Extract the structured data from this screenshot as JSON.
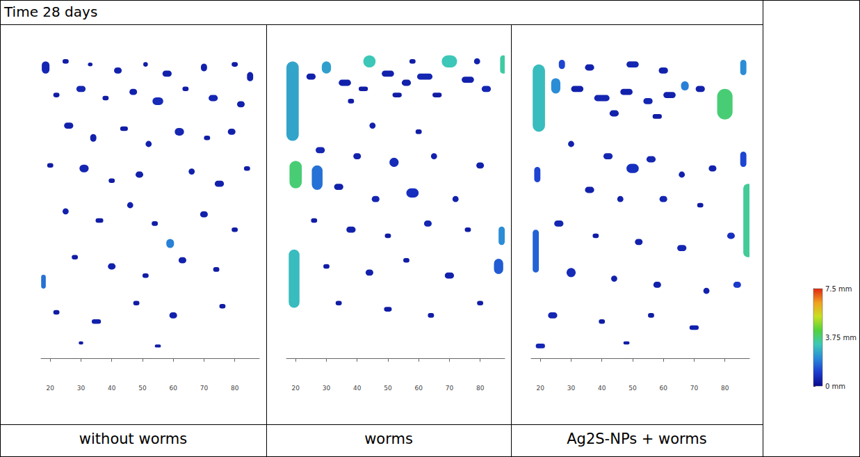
{
  "title": "Time 28 days",
  "colorbar": {
    "range": [
      0,
      7.5
    ],
    "ticks": [
      {
        "value": 0,
        "label": "0 mm"
      },
      {
        "value": 3.75,
        "label": "3.75 mm"
      },
      {
        "value": 7.5,
        "label": "7.5 mm"
      }
    ],
    "colors": [
      "#0a0a8c",
      "#1c3cd0",
      "#2a8ad8",
      "#3cc8b8",
      "#52d23c",
      "#c8e020",
      "#f0a020",
      "#e02810"
    ]
  },
  "chart_data": [
    {
      "type": "pore_map",
      "title": "without worms",
      "xlim": [
        17,
        88
      ],
      "xticks": [
        20,
        30,
        40,
        50,
        60,
        70,
        80
      ],
      "ylim": [
        0,
        100
      ],
      "tick_labels": "x",
      "pores": [
        {
          "x": 18.5,
          "y": 95,
          "w": 2.5,
          "h": 4,
          "thickness": 0.6
        },
        {
          "x": 25,
          "y": 97,
          "w": 2,
          "h": 1.5,
          "thickness": 0.4
        },
        {
          "x": 33,
          "y": 96,
          "w": 1.5,
          "h": 1.2,
          "thickness": 0.4
        },
        {
          "x": 42,
          "y": 94,
          "w": 2.5,
          "h": 2,
          "thickness": 0.5
        },
        {
          "x": 51,
          "y": 96,
          "w": 1.5,
          "h": 1.5,
          "thickness": 0.4
        },
        {
          "x": 58,
          "y": 93,
          "w": 3,
          "h": 2,
          "thickness": 0.5
        },
        {
          "x": 70,
          "y": 95,
          "w": 2,
          "h": 2.5,
          "thickness": 0.5
        },
        {
          "x": 80,
          "y": 96,
          "w": 2,
          "h": 1.5,
          "thickness": 0.4
        },
        {
          "x": 85,
          "y": 92,
          "w": 2,
          "h": 3,
          "thickness": 0.5
        },
        {
          "x": 22,
          "y": 86,
          "w": 2,
          "h": 1.5,
          "thickness": 0.4
        },
        {
          "x": 30,
          "y": 88,
          "w": 3,
          "h": 2,
          "thickness": 0.6
        },
        {
          "x": 38,
          "y": 85,
          "w": 2,
          "h": 1.5,
          "thickness": 0.4
        },
        {
          "x": 47,
          "y": 87,
          "w": 2.5,
          "h": 2,
          "thickness": 0.5
        },
        {
          "x": 55,
          "y": 84,
          "w": 3.5,
          "h": 2.5,
          "thickness": 0.7
        },
        {
          "x": 64,
          "y": 88,
          "w": 2,
          "h": 1.5,
          "thickness": 0.4
        },
        {
          "x": 73,
          "y": 85,
          "w": 3,
          "h": 2,
          "thickness": 0.6
        },
        {
          "x": 82,
          "y": 83,
          "w": 2.5,
          "h": 2,
          "thickness": 0.5
        },
        {
          "x": 26,
          "y": 76,
          "w": 3,
          "h": 2,
          "thickness": 0.5
        },
        {
          "x": 34,
          "y": 72,
          "w": 2,
          "h": 2.5,
          "thickness": 0.5
        },
        {
          "x": 44,
          "y": 75,
          "w": 2.5,
          "h": 1.5,
          "thickness": 0.4
        },
        {
          "x": 52,
          "y": 70,
          "w": 2,
          "h": 2,
          "thickness": 0.5
        },
        {
          "x": 62,
          "y": 74,
          "w": 3,
          "h": 2.5,
          "thickness": 0.6
        },
        {
          "x": 71,
          "y": 72,
          "w": 2,
          "h": 1.5,
          "thickness": 0.4
        },
        {
          "x": 79,
          "y": 74,
          "w": 2.5,
          "h": 2,
          "thickness": 0.5
        },
        {
          "x": 20,
          "y": 63,
          "w": 2,
          "h": 1.5,
          "thickness": 0.4
        },
        {
          "x": 31,
          "y": 62,
          "w": 3,
          "h": 2.5,
          "thickness": 0.6
        },
        {
          "x": 40,
          "y": 58,
          "w": 2,
          "h": 1.5,
          "thickness": 0.4
        },
        {
          "x": 49,
          "y": 60,
          "w": 2.5,
          "h": 2,
          "thickness": 0.5
        },
        {
          "x": 66,
          "y": 61,
          "w": 2,
          "h": 2,
          "thickness": 0.5
        },
        {
          "x": 75,
          "y": 57,
          "w": 3,
          "h": 2,
          "thickness": 0.5
        },
        {
          "x": 84,
          "y": 62,
          "w": 2,
          "h": 1.5,
          "thickness": 0.4
        },
        {
          "x": 25,
          "y": 48,
          "w": 2,
          "h": 2,
          "thickness": 0.5
        },
        {
          "x": 36,
          "y": 45,
          "w": 2.5,
          "h": 1.5,
          "thickness": 0.4
        },
        {
          "x": 46,
          "y": 50,
          "w": 2,
          "h": 2,
          "thickness": 0.5
        },
        {
          "x": 59,
          "y": 37.5,
          "w": 2.5,
          "h": 3,
          "thickness": 2.0
        },
        {
          "x": 54,
          "y": 44,
          "w": 2,
          "h": 1.5,
          "thickness": 0.4
        },
        {
          "x": 70,
          "y": 47,
          "w": 2.5,
          "h": 2,
          "thickness": 0.5
        },
        {
          "x": 80,
          "y": 42,
          "w": 2,
          "h": 1.5,
          "thickness": 0.4
        },
        {
          "x": 17.8,
          "y": 25,
          "w": 1.5,
          "h": 4.5,
          "thickness": 1.8
        },
        {
          "x": 28,
          "y": 33,
          "w": 2,
          "h": 1.5,
          "thickness": 0.4
        },
        {
          "x": 40,
          "y": 30,
          "w": 2.5,
          "h": 2,
          "thickness": 0.5
        },
        {
          "x": 51,
          "y": 27,
          "w": 2,
          "h": 1.5,
          "thickness": 0.4
        },
        {
          "x": 63,
          "y": 32,
          "w": 2.5,
          "h": 2,
          "thickness": 0.5
        },
        {
          "x": 74,
          "y": 29,
          "w": 2,
          "h": 1.5,
          "thickness": 0.4
        },
        {
          "x": 22,
          "y": 15,
          "w": 2,
          "h": 1.5,
          "thickness": 0.4
        },
        {
          "x": 35,
          "y": 12,
          "w": 3,
          "h": 1.5,
          "thickness": 0.5
        },
        {
          "x": 48,
          "y": 18,
          "w": 2,
          "h": 1.5,
          "thickness": 0.4
        },
        {
          "x": 60,
          "y": 14,
          "w": 2.5,
          "h": 2,
          "thickness": 0.5
        },
        {
          "x": 76,
          "y": 17,
          "w": 2,
          "h": 1.5,
          "thickness": 0.4
        },
        {
          "x": 30,
          "y": 5,
          "w": 1.5,
          "h": 1,
          "thickness": 0.4
        },
        {
          "x": 55,
          "y": 4,
          "w": 2,
          "h": 1,
          "thickness": 0.4
        }
      ]
    },
    {
      "type": "pore_map",
      "title": "worms",
      "xlim": [
        17,
        88
      ],
      "xticks": [
        20,
        30,
        40,
        50,
        60,
        70,
        80
      ],
      "ylim": [
        0,
        100
      ],
      "tick_labels": "x",
      "pores": [
        {
          "x": 19,
          "y": 84,
          "w": 4,
          "h": 26,
          "thickness": 2.6
        },
        {
          "x": 20,
          "y": 60,
          "w": 4,
          "h": 9,
          "thickness": 3.8
        },
        {
          "x": 27,
          "y": 59,
          "w": 3.5,
          "h": 8,
          "thickness": 1.8
        },
        {
          "x": 19.5,
          "y": 26,
          "w": 3.5,
          "h": 19,
          "thickness": 3.0
        },
        {
          "x": 30,
          "y": 95,
          "w": 3,
          "h": 4,
          "thickness": 2.5
        },
        {
          "x": 44,
          "y": 97,
          "w": 4,
          "h": 4,
          "thickness": 3.2
        },
        {
          "x": 70,
          "y": 97,
          "w": 5,
          "h": 4,
          "thickness": 3.2
        },
        {
          "x": 87.5,
          "y": 96,
          "w": 2,
          "h": 6,
          "thickness": 3.4
        },
        {
          "x": 87,
          "y": 40,
          "w": 2,
          "h": 6,
          "thickness": 2.2
        },
        {
          "x": 86,
          "y": 30,
          "w": 3,
          "h": 5,
          "thickness": 1.5
        },
        {
          "x": 25,
          "y": 92,
          "w": 3,
          "h": 2,
          "thickness": 0.5
        },
        {
          "x": 36,
          "y": 90,
          "w": 4,
          "h": 2,
          "thickness": 0.5
        },
        {
          "x": 42,
          "y": 88,
          "w": 3,
          "h": 1.5,
          "thickness": 0.4
        },
        {
          "x": 50,
          "y": 93,
          "w": 4,
          "h": 2,
          "thickness": 0.5
        },
        {
          "x": 56,
          "y": 90,
          "w": 3,
          "h": 2,
          "thickness": 0.5
        },
        {
          "x": 62,
          "y": 92,
          "w": 5,
          "h": 2,
          "thickness": 0.6
        },
        {
          "x": 76,
          "y": 91,
          "w": 4,
          "h": 2,
          "thickness": 0.5
        },
        {
          "x": 82,
          "y": 88,
          "w": 3,
          "h": 2,
          "thickness": 0.6
        },
        {
          "x": 53,
          "y": 86,
          "w": 3,
          "h": 1.5,
          "thickness": 0.4
        },
        {
          "x": 66,
          "y": 86,
          "w": 3,
          "h": 1.5,
          "thickness": 0.4
        },
        {
          "x": 38,
          "y": 84,
          "w": 2,
          "h": 1.5,
          "thickness": 0.4
        },
        {
          "x": 79,
          "y": 97,
          "w": 2,
          "h": 2,
          "thickness": 0.5
        },
        {
          "x": 58,
          "y": 97,
          "w": 2,
          "h": 1.5,
          "thickness": 0.4
        },
        {
          "x": 45,
          "y": 76,
          "w": 2,
          "h": 2,
          "thickness": 0.5
        },
        {
          "x": 60,
          "y": 74,
          "w": 2,
          "h": 1.5,
          "thickness": 0.4
        },
        {
          "x": 28,
          "y": 68,
          "w": 3,
          "h": 2,
          "thickness": 0.6
        },
        {
          "x": 40,
          "y": 66,
          "w": 2.5,
          "h": 2,
          "thickness": 0.5
        },
        {
          "x": 52,
          "y": 64,
          "w": 3,
          "h": 3,
          "thickness": 0.7
        },
        {
          "x": 65,
          "y": 66,
          "w": 2,
          "h": 2,
          "thickness": 0.5
        },
        {
          "x": 80,
          "y": 63,
          "w": 2.5,
          "h": 2,
          "thickness": 0.5
        },
        {
          "x": 34,
          "y": 56,
          "w": 3,
          "h": 2,
          "thickness": 0.5
        },
        {
          "x": 46,
          "y": 52,
          "w": 2.5,
          "h": 2,
          "thickness": 0.6
        },
        {
          "x": 58,
          "y": 54,
          "w": 4,
          "h": 3,
          "thickness": 0.8
        },
        {
          "x": 72,
          "y": 52,
          "w": 2,
          "h": 2,
          "thickness": 0.5
        },
        {
          "x": 26,
          "y": 45,
          "w": 2,
          "h": 1.5,
          "thickness": 0.4
        },
        {
          "x": 38,
          "y": 42,
          "w": 3,
          "h": 2,
          "thickness": 0.5
        },
        {
          "x": 50,
          "y": 40,
          "w": 2,
          "h": 1.5,
          "thickness": 0.4
        },
        {
          "x": 63,
          "y": 44,
          "w": 2.5,
          "h": 2,
          "thickness": 0.6
        },
        {
          "x": 76,
          "y": 42,
          "w": 2,
          "h": 1.5,
          "thickness": 0.4
        },
        {
          "x": 30,
          "y": 30,
          "w": 2,
          "h": 1.5,
          "thickness": 0.4
        },
        {
          "x": 44,
          "y": 28,
          "w": 2.5,
          "h": 2,
          "thickness": 0.5
        },
        {
          "x": 56,
          "y": 32,
          "w": 2,
          "h": 1.5,
          "thickness": 0.4
        },
        {
          "x": 70,
          "y": 27,
          "w": 3,
          "h": 2,
          "thickness": 0.5
        },
        {
          "x": 34,
          "y": 18,
          "w": 2,
          "h": 1.5,
          "thickness": 0.4
        },
        {
          "x": 50,
          "y": 16,
          "w": 2.5,
          "h": 1.5,
          "thickness": 0.4
        },
        {
          "x": 64,
          "y": 14,
          "w": 2,
          "h": 1.5,
          "thickness": 0.4
        },
        {
          "x": 80,
          "y": 18,
          "w": 2,
          "h": 1.5,
          "thickness": 0.4
        }
      ]
    },
    {
      "type": "pore_map",
      "title": "Ag2S-NPs + worms",
      "xlim": [
        17,
        88
      ],
      "xticks": [
        20,
        30,
        40,
        50,
        60,
        70,
        80
      ],
      "ylim": [
        0,
        100
      ],
      "tick_labels": "x",
      "pores": [
        {
          "x": 19.5,
          "y": 85,
          "w": 4,
          "h": 22,
          "thickness": 3.0
        },
        {
          "x": 25,
          "y": 89,
          "w": 3,
          "h": 5,
          "thickness": 2.2
        },
        {
          "x": 80,
          "y": 83,
          "w": 5,
          "h": 10,
          "thickness": 3.8
        },
        {
          "x": 67,
          "y": 89,
          "w": 2.5,
          "h": 3,
          "thickness": 2.0
        },
        {
          "x": 87.5,
          "y": 45,
          "w": 3,
          "h": 24,
          "thickness": 3.5
        },
        {
          "x": 18.5,
          "y": 35,
          "w": 2,
          "h": 14,
          "thickness": 1.6
        },
        {
          "x": 86,
          "y": 95,
          "w": 2,
          "h": 5,
          "thickness": 2.2
        },
        {
          "x": 27,
          "y": 96,
          "w": 2,
          "h": 3,
          "thickness": 1.2
        },
        {
          "x": 19,
          "y": 60,
          "w": 2,
          "h": 5,
          "thickness": 1.2
        },
        {
          "x": 86,
          "y": 65,
          "w": 2,
          "h": 5,
          "thickness": 1.2
        },
        {
          "x": 32,
          "y": 88,
          "w": 4,
          "h": 2,
          "thickness": 0.5
        },
        {
          "x": 40,
          "y": 85,
          "w": 5,
          "h": 2,
          "thickness": 0.6
        },
        {
          "x": 48,
          "y": 87,
          "w": 4,
          "h": 2,
          "thickness": 0.5
        },
        {
          "x": 55,
          "y": 84,
          "w": 3,
          "h": 2,
          "thickness": 0.6
        },
        {
          "x": 62,
          "y": 86,
          "w": 4,
          "h": 2,
          "thickness": 0.5
        },
        {
          "x": 72,
          "y": 88,
          "w": 3,
          "h": 2,
          "thickness": 0.5
        },
        {
          "x": 36,
          "y": 95,
          "w": 3,
          "h": 2,
          "thickness": 0.5
        },
        {
          "x": 50,
          "y": 96,
          "w": 4,
          "h": 2,
          "thickness": 0.6
        },
        {
          "x": 60,
          "y": 94,
          "w": 3,
          "h": 2,
          "thickness": 0.5
        },
        {
          "x": 44,
          "y": 80,
          "w": 3,
          "h": 2,
          "thickness": 0.5
        },
        {
          "x": 58,
          "y": 79,
          "w": 3,
          "h": 1.5,
          "thickness": 0.4
        },
        {
          "x": 30,
          "y": 70,
          "w": 2,
          "h": 2,
          "thickness": 0.5
        },
        {
          "x": 42,
          "y": 66,
          "w": 3,
          "h": 2,
          "thickness": 0.6
        },
        {
          "x": 50,
          "y": 62,
          "w": 4,
          "h": 3,
          "thickness": 0.8
        },
        {
          "x": 56,
          "y": 65,
          "w": 3,
          "h": 2,
          "thickness": 0.6
        },
        {
          "x": 66,
          "y": 60,
          "w": 2,
          "h": 2,
          "thickness": 0.5
        },
        {
          "x": 76,
          "y": 62,
          "w": 2.5,
          "h": 2,
          "thickness": 0.5
        },
        {
          "x": 36,
          "y": 55,
          "w": 3,
          "h": 2,
          "thickness": 0.5
        },
        {
          "x": 46,
          "y": 52,
          "w": 2,
          "h": 2,
          "thickness": 0.5
        },
        {
          "x": 60,
          "y": 52,
          "w": 2.5,
          "h": 2,
          "thickness": 0.6
        },
        {
          "x": 72,
          "y": 50,
          "w": 2,
          "h": 1.5,
          "thickness": 0.4
        },
        {
          "x": 82,
          "y": 40,
          "w": 2.5,
          "h": 2,
          "thickness": 0.8
        },
        {
          "x": 26,
          "y": 44,
          "w": 3,
          "h": 2,
          "thickness": 0.6
        },
        {
          "x": 38,
          "y": 40,
          "w": 2,
          "h": 1.5,
          "thickness": 0.4
        },
        {
          "x": 52,
          "y": 38,
          "w": 2.5,
          "h": 2,
          "thickness": 0.5
        },
        {
          "x": 66,
          "y": 36,
          "w": 3,
          "h": 2,
          "thickness": 0.6
        },
        {
          "x": 30,
          "y": 28,
          "w": 3,
          "h": 3,
          "thickness": 0.7
        },
        {
          "x": 44,
          "y": 26,
          "w": 2,
          "h": 2,
          "thickness": 0.5
        },
        {
          "x": 58,
          "y": 24,
          "w": 2.5,
          "h": 2,
          "thickness": 0.5
        },
        {
          "x": 74,
          "y": 22,
          "w": 2,
          "h": 2,
          "thickness": 0.5
        },
        {
          "x": 84,
          "y": 24,
          "w": 2.5,
          "h": 2,
          "thickness": 1.0
        },
        {
          "x": 24,
          "y": 14,
          "w": 3,
          "h": 2,
          "thickness": 0.6
        },
        {
          "x": 40,
          "y": 12,
          "w": 2,
          "h": 1.5,
          "thickness": 0.4
        },
        {
          "x": 56,
          "y": 14,
          "w": 2,
          "h": 1.5,
          "thickness": 0.4
        },
        {
          "x": 70,
          "y": 10,
          "w": 3,
          "h": 1.5,
          "thickness": 0.5
        },
        {
          "x": 20,
          "y": 4,
          "w": 3,
          "h": 1.5,
          "thickness": 0.6
        },
        {
          "x": 48,
          "y": 5,
          "w": 2,
          "h": 1,
          "thickness": 0.4
        }
      ]
    }
  ]
}
